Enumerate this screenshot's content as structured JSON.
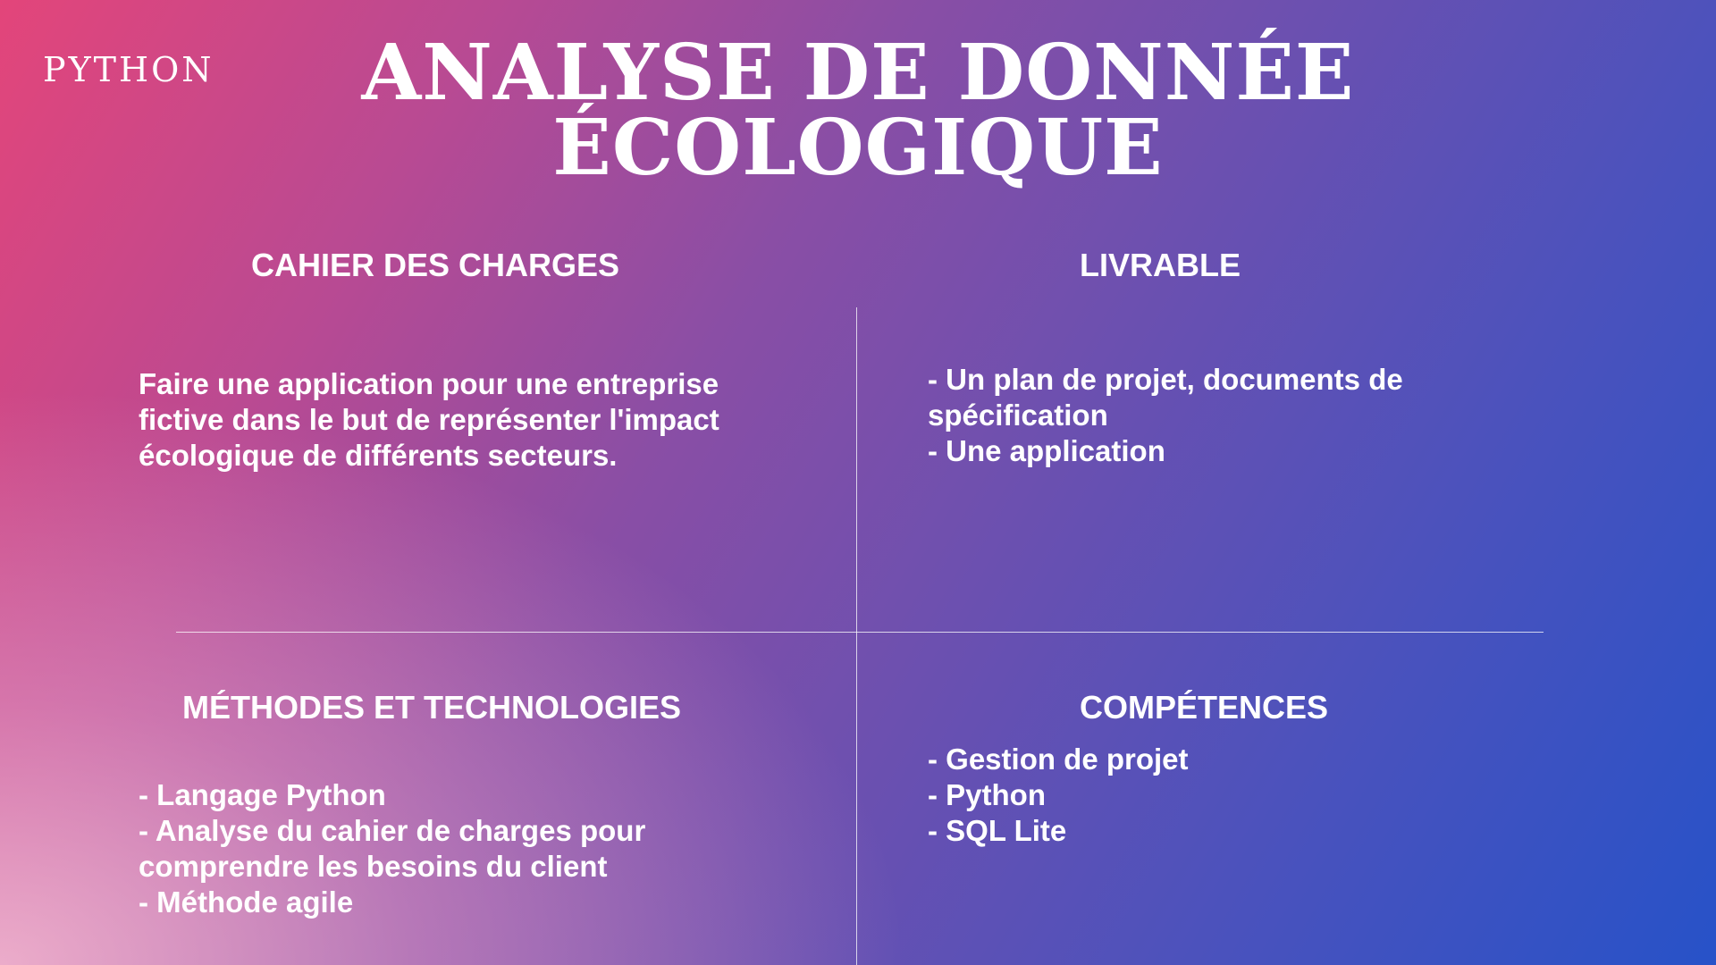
{
  "tag": "PYTHON",
  "title": {
    "line1": "ANALYSE DE DONNÉE",
    "line2": "ÉCOLOGIQUE"
  },
  "sections": {
    "cahier": {
      "heading": "CAHIER DES CHARGES",
      "lines": [
        "Faire une application pour une entreprise",
        "fictive dans le but de représenter l'impact",
        "écologique de différents secteurs."
      ]
    },
    "livrable": {
      "heading": "LIVRABLE",
      "lines": [
        "- Un plan de projet, documents de",
        "spécification",
        "- Une application"
      ]
    },
    "methodes": {
      "heading": "MÉTHODES ET TECHNOLOGIES",
      "lines": [
        "- Langage Python",
        "- Analyse du cahier de charges pour",
        "comprendre les besoins du client",
        "- Méthode agile"
      ]
    },
    "competences": {
      "heading": "COMPÉTENCES",
      "lines": [
        "- Gestion de projet",
        "- Python",
        "- SQL Lite"
      ]
    }
  }
}
